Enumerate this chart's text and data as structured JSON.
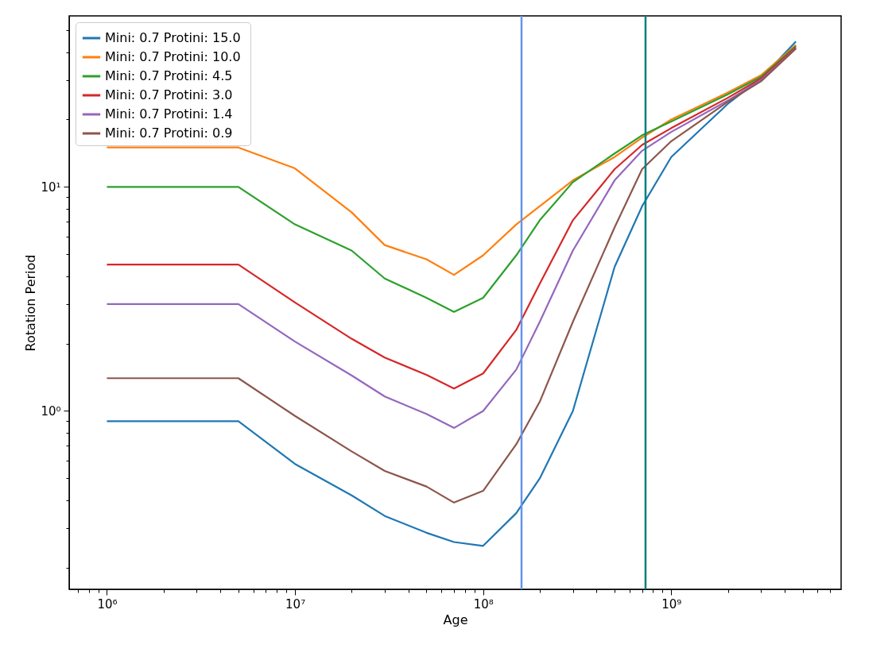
{
  "chart_data": {
    "type": "line",
    "xlabel": "Age",
    "ylabel": "Rotation Period",
    "log": "xy",
    "grid": false,
    "legend": "top left",
    "line_style": "solid",
    "marker": "none",
    "x": [
      1000000,
      5000000,
      10000000,
      20000000,
      30000000,
      50000000,
      70000000,
      100000000,
      150000000,
      200000000,
      300000000,
      500000000,
      700000000,
      1000000000,
      2000000000,
      3000000000,
      4600000000
    ],
    "xlim": [
      630000,
      8000000000
    ],
    "ylim": [
      0.16,
      58
    ],
    "xticks": [
      {
        "value": 700000,
        "label": null
      },
      {
        "value": 800000,
        "label": null
      },
      {
        "value": 900000,
        "label": null
      },
      {
        "value": 1000000,
        "label": "10⁶"
      },
      {
        "value": 2000000,
        "label": null
      },
      {
        "value": 3000000,
        "label": null
      },
      {
        "value": 4000000,
        "label": null
      },
      {
        "value": 5000000,
        "label": null
      },
      {
        "value": 6000000,
        "label": null
      },
      {
        "value": 7000000,
        "label": null
      },
      {
        "value": 8000000,
        "label": null
      },
      {
        "value": 9000000,
        "label": null
      },
      {
        "value": 10000000,
        "label": "10⁷"
      },
      {
        "value": 20000000,
        "label": null
      },
      {
        "value": 30000000,
        "label": null
      },
      {
        "value": 40000000,
        "label": null
      },
      {
        "value": 50000000,
        "label": null
      },
      {
        "value": 60000000,
        "label": null
      },
      {
        "value": 70000000,
        "label": null
      },
      {
        "value": 80000000,
        "label": null
      },
      {
        "value": 90000000,
        "label": null
      },
      {
        "value": 100000000,
        "label": "10⁸"
      },
      {
        "value": 200000000,
        "label": null
      },
      {
        "value": 300000000,
        "label": null
      },
      {
        "value": 400000000,
        "label": null
      },
      {
        "value": 500000000,
        "label": null
      },
      {
        "value": 600000000,
        "label": null
      },
      {
        "value": 700000000,
        "label": null
      },
      {
        "value": 800000000,
        "label": null
      },
      {
        "value": 900000000,
        "label": null
      },
      {
        "value": 1000000000,
        "label": "10⁹"
      },
      {
        "value": 2000000000,
        "label": null
      },
      {
        "value": 3000000000,
        "label": null
      },
      {
        "value": 4000000000,
        "label": null
      },
      {
        "value": 5000000000,
        "label": null
      },
      {
        "value": 6000000000,
        "label": null
      },
      {
        "value": 7000000000,
        "label": null
      }
    ],
    "yticks": [
      {
        "value": 0.2,
        "label": null
      },
      {
        "value": 0.3,
        "label": null
      },
      {
        "value": 0.4,
        "label": null
      },
      {
        "value": 0.5,
        "label": null
      },
      {
        "value": 0.6,
        "label": null
      },
      {
        "value": 0.7,
        "label": null
      },
      {
        "value": 0.8,
        "label": null
      },
      {
        "value": 0.9,
        "label": null
      },
      {
        "value": 1,
        "label": "10⁰"
      },
      {
        "value": 2,
        "label": null
      },
      {
        "value": 3,
        "label": null
      },
      {
        "value": 4,
        "label": null
      },
      {
        "value": 5,
        "label": null
      },
      {
        "value": 6,
        "label": null
      },
      {
        "value": 7,
        "label": null
      },
      {
        "value": 8,
        "label": null
      },
      {
        "value": 9,
        "label": null
      },
      {
        "value": 10,
        "label": "10¹"
      },
      {
        "value": 20,
        "label": null
      },
      {
        "value": 30,
        "label": null
      },
      {
        "value": 40,
        "label": null
      },
      {
        "value": 50,
        "label": null
      }
    ],
    "series": [
      {
        "name": "Mini: 0.7  Protini: 15.0",
        "color": "#1f77b4",
        "values": [
          0.9,
          0.9,
          0.58,
          0.42,
          0.34,
          0.286,
          0.26,
          0.25,
          0.35,
          0.5,
          1.0,
          4.4,
          8.2,
          13.6,
          23.5,
          30.5,
          44.6
        ]
      },
      {
        "name": "Mini: 0.7  Protini: 10.0",
        "color": "#ff7f0e",
        "values": [
          15,
          15,
          12.1,
          7.7,
          5.5,
          4.75,
          4.05,
          4.95,
          6.8,
          8.2,
          10.7,
          13.6,
          16.6,
          20,
          26.4,
          31.5,
          43
        ]
      },
      {
        "name": "Mini: 0.7  Protini: 4.5",
        "color": "#2ca02c",
        "values": [
          10,
          10,
          6.8,
          5.2,
          3.9,
          3.2,
          2.77,
          3.2,
          4.95,
          7.1,
          10.5,
          14.1,
          17,
          19.6,
          25.9,
          31,
          42.5
        ]
      },
      {
        "name": "Mini: 0.7  Protini: 3.0",
        "color": "#d62728",
        "values": [
          4.5,
          4.5,
          3.05,
          2.1,
          1.73,
          1.45,
          1.26,
          1.47,
          2.3,
          3.7,
          7.1,
          12,
          15.4,
          18.3,
          25,
          30.5,
          42
        ]
      },
      {
        "name": "Mini: 0.7  Protini: 1.4",
        "color": "#9467bd",
        "values": [
          3,
          3,
          2.04,
          1.44,
          1.16,
          0.97,
          0.84,
          1.0,
          1.53,
          2.5,
          5.2,
          10.7,
          14.5,
          17.6,
          24.3,
          30,
          41.6
        ]
      },
      {
        "name": "Mini: 0.7  Protini: 0.9",
        "color": "#8c564b",
        "values": [
          1.4,
          1.4,
          0.95,
          0.66,
          0.54,
          0.46,
          0.39,
          0.44,
          0.71,
          1.1,
          2.5,
          6.6,
          12,
          16,
          24,
          29.6,
          41.4
        ]
      }
    ],
    "ref_lines": [
      {
        "axis": "x",
        "value": 160000000,
        "color": "#6495ed"
      },
      {
        "axis": "x",
        "value": 730000000,
        "color": "#008080"
      }
    ]
  }
}
